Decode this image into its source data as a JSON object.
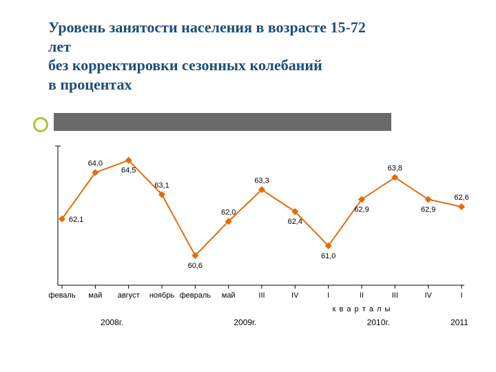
{
  "title_lines": [
    "Уровень занятости населения в возрасте 15-72",
    "лет",
    " без корректировки сезонных колебаний",
    "в процентах"
  ],
  "chart": {
    "type": "line",
    "line_color": "#e46c0a",
    "line_width": 2,
    "marker": {
      "shape": "diamond",
      "size": 7,
      "fill": "#e46c0a",
      "stroke": "#e46c0a"
    },
    "marker_highlight": {
      "fill": "#ffffff",
      "stroke": "#e46c0a"
    },
    "data_label_color": "#000000",
    "data_label_fontsize": 11,
    "axis_color": "#000000",
    "tick_color": "#000000",
    "tick_label_color": "#000000",
    "tick_label_fontsize": 11,
    "year_label_fontsize": 12,
    "quarters_label_fontsize": 11,
    "background_color": "#ffffff",
    "ylim": [
      59.5,
      65.0
    ],
    "categories": [
      "феваль",
      "май",
      "август",
      "ноябрь",
      "февраль",
      "май",
      "III",
      "IV",
      "I",
      "II",
      "III",
      "IV",
      "I"
    ],
    "values": [
      62.1,
      64.0,
      64.5,
      63.1,
      60.6,
      62.0,
      63.3,
      62.4,
      61.0,
      62.9,
      63.8,
      62.9,
      62.6
    ],
    "value_labels": [
      "62,1",
      "64,0",
      "64,5",
      "63,1",
      "60,6",
      "62,0",
      "63,3",
      "62,4",
      "61,0",
      "62,9",
      "63,8",
      "62,9",
      "62,6"
    ],
    "label_position": [
      "right",
      "above",
      "below",
      "above",
      "below",
      "above",
      "above",
      "below",
      "below",
      "below",
      "above",
      "below",
      "above"
    ],
    "years": [
      {
        "label": "2008г.",
        "span": [
          0,
          3
        ]
      },
      {
        "label": "2009г.",
        "span": [
          4,
          7
        ]
      },
      {
        "label": "2010г.",
        "span": [
          8,
          11
        ]
      },
      {
        "label": "2011г.",
        "span": [
          12,
          12
        ]
      }
    ],
    "quarters_label": "к в а р т а л ы"
  }
}
